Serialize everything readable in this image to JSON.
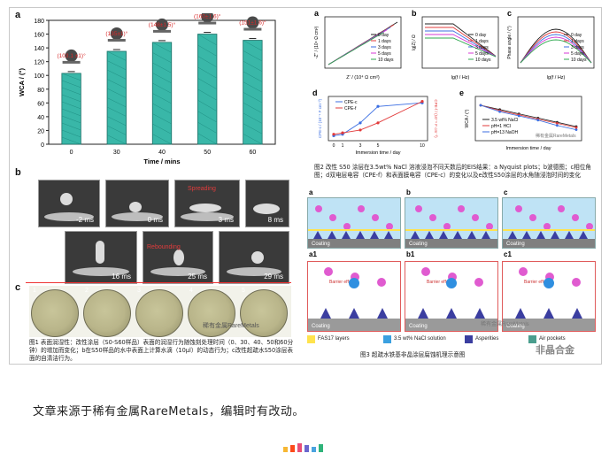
{
  "figure1": {
    "panel_a_letter": "a",
    "panel_b_letter": "b",
    "panel_c_letter": "c",
    "chart_a": {
      "type": "bar",
      "categories": [
        "0",
        "30",
        "40",
        "50",
        "60"
      ],
      "values": [
        103,
        135,
        148,
        160,
        151
      ],
      "ylabel": "WCA / (°)",
      "xlabel": "Time / mins",
      "ylim": [
        0,
        180
      ],
      "yticks": [
        "0",
        "20",
        "40",
        "60",
        "80",
        "100",
        "120",
        "140",
        "160",
        "180"
      ],
      "angle_labels": [
        "(103.1 ±1)°",
        "(135±1)°",
        "(148±1.5)°",
        "(160±1.6)°",
        "(151±1.6)°"
      ]
    },
    "b_times_row1": [
      "-2 ms",
      "0 ms",
      "3 ms",
      "8 ms"
    ],
    "b_times_row2": [
      "16 ms",
      "25 ms",
      "29 ms"
    ],
    "b_spreading": "Spreading",
    "b_rebounding": "Rebounding",
    "c_numbers": [
      "1",
      "2",
      "3",
      "4",
      "5"
    ],
    "watermark": "稀有金属RareMetals",
    "caption": "图1 表面润湿性：改性涂层（S0-S60样品）表面的润湿行为随蚀刻处理时间（0、30、40、50和60分钟）的增加而变化；b在S50样品的水中表面上计算水滴（10μl）的动态行为；c改性超疏水S50涂层表面的自清洁行为。"
  },
  "figure2": {
    "letters": [
      "a",
      "b",
      "c",
      "d",
      "e"
    ],
    "legend_days": [
      "0 day",
      "1 days",
      "3 days",
      "5 days",
      "10 days"
    ],
    "a_xlabel": "Z' / (10⁴ Ω cm²)",
    "a_ylabel": "-Z'' / (10⁴ Ω cm²)",
    "b_xlabel": "lg(f / Hz)",
    "b_ylabel": "lg|Z| / Ω",
    "c_xlabel": "lg(f / Hz)",
    "c_ylabel": "Phase angle / (°)",
    "d_xlabel": "Immersion time / day",
    "d_legend": [
      "CPE-c",
      "CPE-f"
    ],
    "d_left_label": "CPE-c / (10⁻⁹ F cm⁻²)",
    "d_right_label": "CPE-f / (10⁻⁹ F cm⁻²)",
    "e_xlabel": "Immersion time / day",
    "e_ylabel": "WCA / (°)",
    "e_legend": [
      "3.5 wt% NaCl",
      "pH=1 HCl",
      "pH=13 NaOH"
    ],
    "chart_d": {
      "type": "line",
      "x": [
        0,
        1,
        3,
        5,
        10
      ],
      "series": [
        {
          "name": "CPE-c",
          "values": [
            0.2,
            0.4,
            2.0,
            4.3,
            4.8
          ]
        },
        {
          "name": "CPE-f",
          "values": [
            0.4,
            0.6,
            1.0,
            2.0,
            5.0
          ]
        }
      ]
    },
    "chart_e": {
      "type": "line",
      "x": [
        0,
        2,
        4,
        6,
        8,
        10
      ],
      "series": [
        {
          "name": "3.5 wt% NaCl",
          "values": [
            160,
            156,
            152,
            148,
            144,
            140
          ]
        },
        {
          "name": "pH=1 HCl",
          "values": [
            160,
            155,
            151,
            147,
            143,
            139
          ]
        },
        {
          "name": "pH=13 NaOH",
          "values": [
            160,
            154,
            150,
            146,
            141,
            137
          ]
        }
      ]
    },
    "watermark": "稀有金属RareMetals",
    "caption": "图2 改性 S50 涂层在3.5wt% NaCl 溶液浸泡不同天数后的EIS结果：a Nyquist plots；b波德图；c相位角图；d双电层电容（CPE-f）和表面膜电容（CPE-c）的变化以及e改性S50涂层的水角随浸泡时间的变化"
  },
  "figure3": {
    "letters": [
      "a",
      "b",
      "c",
      "a1",
      "b1",
      "c1"
    ],
    "coating_label": "Coating",
    "barrier_label": "Barrier effect",
    "legend": [
      "FAS17 layers",
      "3.5 wt% NaCl solution",
      "Asperities",
      "Air pockets"
    ],
    "legend_colors": [
      "#ffe34d",
      "#3aa0e0",
      "#3b3ea0",
      "#4a9e8e"
    ],
    "watermark": "稀有金属RareMetals",
    "caption": "图3 超疏水铁基非晶涂层腐蚀机理示意图"
  },
  "brand_watermark": "非晶合金",
  "footer": "文章来源于稀有金属RareMetals，编辑时有改动。",
  "footer_bar_colors": [
    "#f7b733",
    "#fc4a1a",
    "#e94e77",
    "#6a67ce",
    "#4aa3df",
    "#2fb37a"
  ]
}
